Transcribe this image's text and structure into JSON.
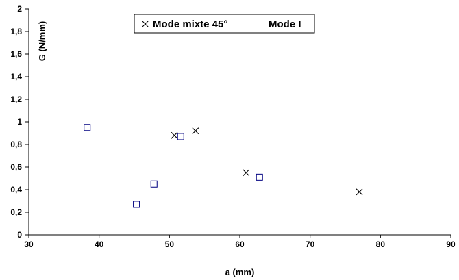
{
  "chart_data": {
    "type": "scatter",
    "xlabel": "a (mm)",
    "ylabel": "G (N/mm)",
    "xlim": [
      30,
      90
    ],
    "ylim": [
      0,
      2
    ],
    "x_ticks": [
      "30",
      "40",
      "50",
      "60",
      "70",
      "80",
      "90"
    ],
    "y_ticks": [
      "0",
      "0,2",
      "0,4",
      "0,6",
      "0,8",
      "1",
      "1,2",
      "1,4",
      "1,6",
      "1,8",
      "2"
    ],
    "grid": false,
    "legend_position": "top",
    "series": [
      {
        "name": "Mode mixte 45°",
        "marker": "x-cross",
        "color": "#000000",
        "points": [
          {
            "x": 50.7,
            "y": 0.88
          },
          {
            "x": 53.7,
            "y": 0.92
          },
          {
            "x": 60.9,
            "y": 0.55
          },
          {
            "x": 77.0,
            "y": 0.38
          }
        ]
      },
      {
        "name": "Mode I",
        "marker": "open-square",
        "color": "#000080",
        "points": [
          {
            "x": 38.3,
            "y": 0.95
          },
          {
            "x": 45.3,
            "y": 0.27
          },
          {
            "x": 47.8,
            "y": 0.45
          },
          {
            "x": 51.6,
            "y": 0.87
          },
          {
            "x": 62.8,
            "y": 0.51
          }
        ]
      }
    ]
  }
}
